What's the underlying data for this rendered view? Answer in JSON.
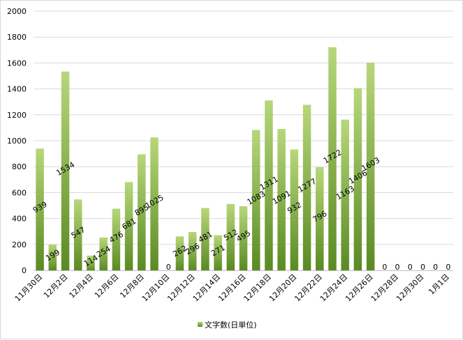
{
  "chart_data": {
    "type": "bar",
    "categories": [
      "11月30日",
      "12月1日",
      "12月2日",
      "12月3日",
      "12月4日",
      "12月5日",
      "12月6日",
      "12月7日",
      "12月8日",
      "12月9日",
      "12月10日",
      "12月11日",
      "12月12日",
      "12月13日",
      "12月14日",
      "12月15日",
      "12月16日",
      "12月17日",
      "12月18日",
      "12月19日",
      "12月20日",
      "12月21日",
      "12月22日",
      "12月23日",
      "12月24日",
      "12月25日",
      "12月26日",
      "12月27日",
      "12月28日",
      "12月29日",
      "12月30日",
      "12月31日",
      "1月1日"
    ],
    "x_tick_labels": [
      "11月30日",
      "12月2日",
      "12月4日",
      "12月6日",
      "12月8日",
      "12月10日",
      "12月12日",
      "12月14日",
      "12月16日",
      "12月18日",
      "12月20日",
      "12月22日",
      "12月24日",
      "12月26日",
      "12月28日",
      "12月30日",
      "1月1日"
    ],
    "series": [
      {
        "name": "文字数(日単位)",
        "values": [
          939,
          199,
          1534,
          547,
          114,
          254,
          476,
          681,
          895,
          1025,
          0,
          262,
          296,
          481,
          271,
          512,
          495,
          1083,
          1311,
          1091,
          932,
          1277,
          796,
          1722,
          1163,
          1406,
          1603,
          0,
          0,
          0,
          0,
          0,
          0
        ]
      }
    ],
    "y_ticks": [
      "0",
      "200",
      "400",
      "600",
      "800",
      "1000",
      "1200",
      "1400",
      "1600",
      "1800",
      "2000"
    ],
    "ylim": [
      0,
      2000
    ],
    "grid": true,
    "legend_position": "bottom",
    "colors": {
      "bar_top": "#b7d77a",
      "bar_bottom": "#5a8a22",
      "grid": "#d9d9d9"
    }
  }
}
